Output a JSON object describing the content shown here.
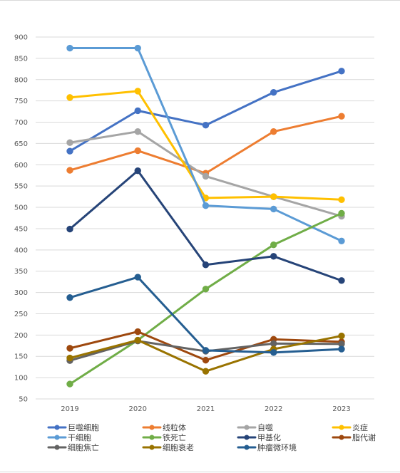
{
  "chart_data": {
    "type": "line",
    "title": "",
    "xlabel": "",
    "ylabel": "",
    "categories": [
      "2019",
      "2020",
      "2021",
      "2022",
      "2023"
    ],
    "ylim": [
      50,
      900
    ],
    "yticks": [
      50,
      100,
      150,
      200,
      250,
      300,
      350,
      400,
      450,
      500,
      550,
      600,
      650,
      700,
      750,
      800,
      850,
      900
    ],
    "grid": true,
    "legend_position": "bottom",
    "series": [
      {
        "name": "巨噬细胞",
        "color": "#4472c4",
        "values": [
          632,
          727,
          693,
          770,
          820
        ]
      },
      {
        "name": "线粒体",
        "color": "#ed7d31",
        "values": [
          587,
          633,
          580,
          678,
          714
        ]
      },
      {
        "name": "自噬",
        "color": "#a5a5a5",
        "values": [
          652,
          678,
          573,
          525,
          479
        ]
      },
      {
        "name": "炎症",
        "color": "#ffc000",
        "values": [
          758,
          773,
          522,
          525,
          518
        ]
      },
      {
        "name": "干细胞",
        "color": "#5b9bd5",
        "values": [
          874,
          874,
          504,
          496,
          421
        ]
      },
      {
        "name": "铁死亡",
        "color": "#70ad47",
        "values": [
          85,
          188,
          308,
          412,
          486
        ]
      },
      {
        "name": "甲基化",
        "color": "#264478",
        "values": [
          449,
          586,
          365,
          385,
          328
        ]
      },
      {
        "name": "脂代谢",
        "color": "#9e480e",
        "values": [
          169,
          208,
          141,
          190,
          184
        ]
      },
      {
        "name": "细胞焦亡",
        "color": "#636363",
        "values": [
          140,
          186,
          162,
          180,
          179
        ]
      },
      {
        "name": "细胞衰老",
        "color": "#997300",
        "values": [
          146,
          188,
          115,
          167,
          198
        ]
      },
      {
        "name": "肿瘤微环境",
        "color": "#255e91",
        "values": [
          288,
          336,
          164,
          159,
          167
        ]
      }
    ]
  }
}
